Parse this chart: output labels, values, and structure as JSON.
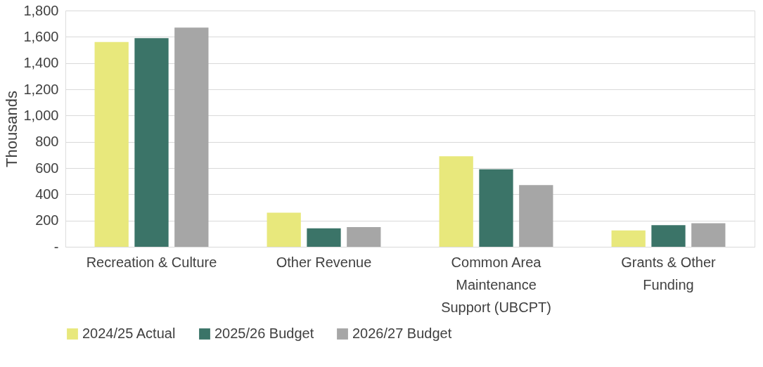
{
  "chart_data": {
    "type": "bar",
    "ylabel": "Thousands",
    "categories": [
      "Recreation & Culture",
      "Other Revenue",
      "Common Area\nMaintenance\nSupport (UBCPT)",
      "Grants & Other\nFunding"
    ],
    "series": [
      {
        "name": "2024/25 Actual",
        "color": "#e8e87c",
        "values": [
          1560,
          260,
          690,
          125
        ]
      },
      {
        "name": "2025/26 Budget",
        "color": "#3b7468",
        "values": [
          1590,
          140,
          590,
          165
        ]
      },
      {
        "name": "2026/27 Budget",
        "color": "#a6a6a6",
        "values": [
          1670,
          150,
          470,
          180
        ]
      }
    ],
    "ylim": [
      0,
      1800
    ],
    "yticks": [
      {
        "value": 0,
        "label": "-"
      },
      {
        "value": 200,
        "label": "200"
      },
      {
        "value": 400,
        "label": "400"
      },
      {
        "value": 600,
        "label": "600"
      },
      {
        "value": 800,
        "label": "800"
      },
      {
        "value": 1000,
        "label": "1,000"
      },
      {
        "value": 1200,
        "label": "1,200"
      },
      {
        "value": 1400,
        "label": "1,400"
      },
      {
        "value": 1600,
        "label": "1,600"
      },
      {
        "value": 1800,
        "label": "1,800"
      }
    ],
    "grid": "y",
    "legend": "bottom"
  }
}
